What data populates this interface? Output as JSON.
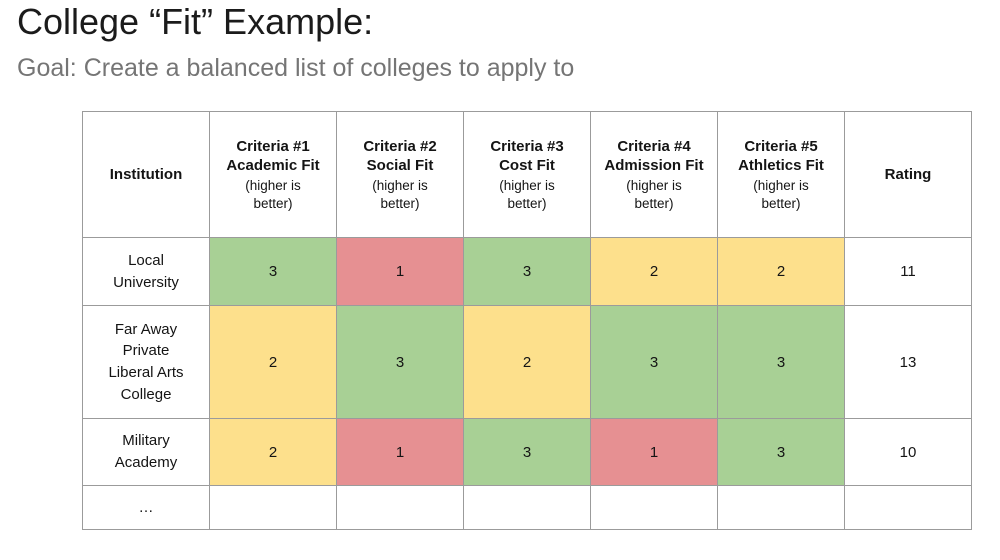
{
  "title": "College “Fit” Example:",
  "subtitle": "Goal: Create a balanced list of colleges to apply to",
  "colors": {
    "green": "#A8D095",
    "red": "#E69092",
    "yellow": "#FDE08C",
    "border": "#9B9B9B",
    "title_text": "#1B1B1B",
    "subtitle_text": "#757575"
  },
  "table": {
    "columns": [
      {
        "title": "Institution",
        "note": ""
      },
      {
        "title": "Criteria #1 Academic Fit",
        "note": "(higher is better)"
      },
      {
        "title": "Criteria #2 Social Fit",
        "note": "(higher is better)"
      },
      {
        "title": "Criteria #3 Cost Fit",
        "note": "(higher is better)"
      },
      {
        "title": "Criteria #4 Admission Fit",
        "note": "(higher is better)"
      },
      {
        "title": "Criteria #5 Athletics Fit",
        "note": "(higher is better)"
      },
      {
        "title": "Rating",
        "note": ""
      }
    ],
    "rows": [
      {
        "institution": "Local University",
        "scores": [
          {
            "value": "3",
            "color": "green"
          },
          {
            "value": "1",
            "color": "red"
          },
          {
            "value": "3",
            "color": "green"
          },
          {
            "value": "2",
            "color": "yellow"
          },
          {
            "value": "2",
            "color": "yellow"
          }
        ],
        "rating": "11"
      },
      {
        "institution": "Far Away Private Liberal Arts College",
        "scores": [
          {
            "value": "2",
            "color": "yellow"
          },
          {
            "value": "3",
            "color": "green"
          },
          {
            "value": "2",
            "color": "yellow"
          },
          {
            "value": "3",
            "color": "green"
          },
          {
            "value": "3",
            "color": "green"
          }
        ],
        "rating": "13"
      },
      {
        "institution": "Military Academy",
        "scores": [
          {
            "value": "2",
            "color": "yellow"
          },
          {
            "value": "1",
            "color": "red"
          },
          {
            "value": "3",
            "color": "green"
          },
          {
            "value": "1",
            "color": "red"
          },
          {
            "value": "3",
            "color": "green"
          }
        ],
        "rating": "10"
      }
    ],
    "ellipsis": "…"
  }
}
